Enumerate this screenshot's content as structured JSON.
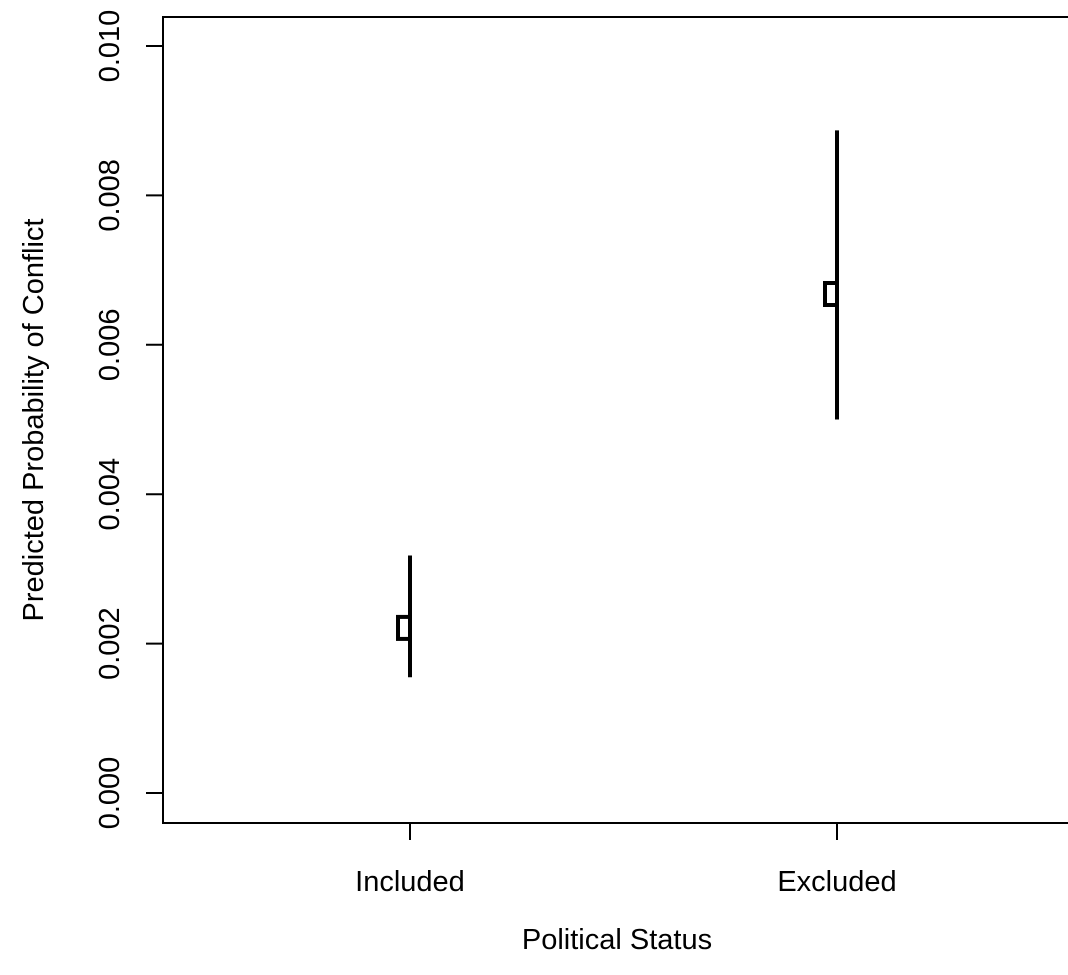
{
  "chart_data": {
    "type": "scatter",
    "subtype": "point-range",
    "xlabel": "Political Status",
    "ylabel": "Predicted Probability of Conflict",
    "categories": [
      "Included",
      "Excluded"
    ],
    "estimates": [
      0.00221,
      0.00668
    ],
    "lower": [
      0.00155,
      0.005
    ],
    "upper": [
      0.00318,
      0.00887
    ],
    "ylim": [
      0.0,
      0.01
    ],
    "y_ticks": [
      "0.000",
      "0.002",
      "0.004",
      "0.006",
      "0.008",
      "0.010"
    ],
    "marker": "open-square",
    "color": "#000000",
    "grid": false,
    "legend": "none"
  }
}
